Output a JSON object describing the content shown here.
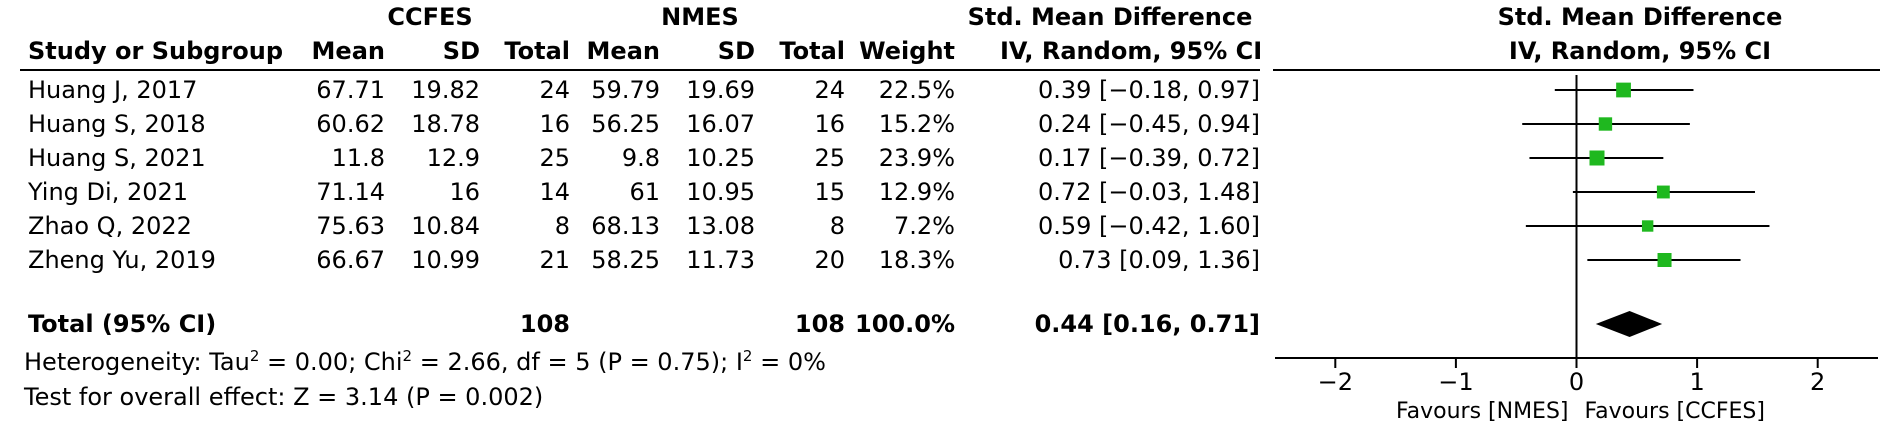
{
  "headers": {
    "group1": "CCFES",
    "group2": "NMES",
    "smd_col_title": "Std. Mean Difference",
    "study_col": "Study or Subgroup",
    "mean": "Mean",
    "sd": "SD",
    "total": "Total",
    "weight": "Weight",
    "method": "IV, Random, 95% CI",
    "plot_title": "Std. Mean Difference",
    "plot_method": "IV, Random, 95% CI"
  },
  "studies": [
    {
      "name": "Huang J, 2017",
      "m1": "67.71",
      "sd1": "19.82",
      "n1": "24",
      "m2": "59.79",
      "sd2": "19.69",
      "n2": "24",
      "weight": "22.5%",
      "ci": "0.39 [−0.18, 0.97]"
    },
    {
      "name": "Huang S, 2018",
      "m1": "60.62",
      "sd1": "18.78",
      "n1": "16",
      "m2": "56.25",
      "sd2": "16.07",
      "n2": "16",
      "weight": "15.2%",
      "ci": "0.24 [−0.45, 0.94]"
    },
    {
      "name": "Huang S, 2021",
      "m1": "11.8",
      "sd1": "12.9",
      "n1": "25",
      "m2": "9.8",
      "sd2": "10.25",
      "n2": "25",
      "weight": "23.9%",
      "ci": "0.17 [−0.39, 0.72]"
    },
    {
      "name": "Ying Di, 2021",
      "m1": "71.14",
      "sd1": "16",
      "n1": "14",
      "m2": "61",
      "sd2": "10.95",
      "n2": "15",
      "weight": "12.9%",
      "ci": "0.72 [−0.03, 1.48]"
    },
    {
      "name": "Zhao Q, 2022",
      "m1": "75.63",
      "sd1": "10.84",
      "n1": "8",
      "m2": "68.13",
      "sd2": "13.08",
      "n2": "8",
      "weight": "7.2%",
      "ci": "0.59 [−0.42, 1.60]"
    },
    {
      "name": "Zheng Yu, 2019",
      "m1": "66.67",
      "sd1": "10.99",
      "n1": "21",
      "m2": "58.25",
      "sd2": "11.73",
      "n2": "20",
      "weight": "18.3%",
      "ci": "0.73 [0.09, 1.36]"
    }
  ],
  "total": {
    "label": "Total (95% CI)",
    "n1": "108",
    "n2": "108",
    "weight": "100.0%",
    "ci": "0.44 [0.16, 0.71]"
  },
  "heterogeneity": {
    "prefix": "Heterogeneity: Tau",
    "tau_value": " = 0.00; Chi",
    "chi_value": " = 2.66, df = 5 (P = 0.75); I",
    "i_value": " = 0%",
    "sup": "2"
  },
  "overall_effect": "Test for overall effect: Z = 3.14 (P = 0.002)",
  "colors": {
    "marker": "#1fb81f",
    "diamond": "#000000"
  },
  "chart_data": {
    "type": "forest",
    "xlim": [
      -2.5,
      2.5
    ],
    "ticks": [
      -2,
      -1,
      0,
      1,
      2
    ],
    "tick_labels": [
      "−2",
      "−1",
      "0",
      "1",
      "2"
    ],
    "xlabel_left": "Favours [NMES]",
    "xlabel_right": "Favours [CCFES]",
    "points": [
      {
        "est": 0.39,
        "lo": -0.18,
        "hi": 0.97,
        "weight": 22.5
      },
      {
        "est": 0.24,
        "lo": -0.45,
        "hi": 0.94,
        "weight": 15.2
      },
      {
        "est": 0.17,
        "lo": -0.39,
        "hi": 0.72,
        "weight": 23.9
      },
      {
        "est": 0.72,
        "lo": -0.03,
        "hi": 1.48,
        "weight": 12.9
      },
      {
        "est": 0.59,
        "lo": -0.42,
        "hi": 1.6,
        "weight": 7.2
      },
      {
        "est": 0.73,
        "lo": 0.09,
        "hi": 1.36,
        "weight": 18.3
      }
    ],
    "pooled": {
      "est": 0.44,
      "lo": 0.16,
      "hi": 0.71
    }
  }
}
